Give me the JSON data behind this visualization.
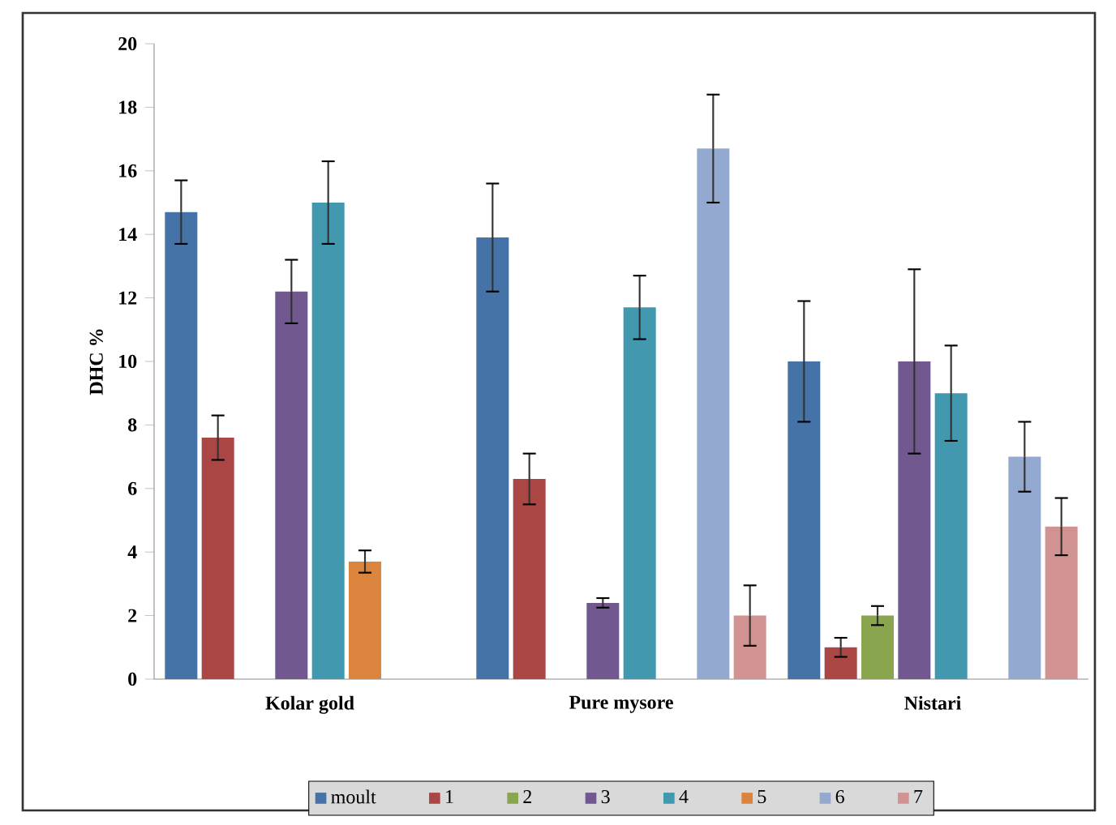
{
  "chart_data": {
    "type": "bar",
    "ylabel": "DHC %",
    "categories": [
      "Kolar gold",
      "Pure mysore",
      "Nistari"
    ],
    "series": [
      {
        "name": "moult",
        "color": "#4572a7",
        "values": [
          14.7,
          13.9,
          10.0
        ],
        "errors": [
          1.0,
          1.7,
          1.9
        ]
      },
      {
        "name": "1",
        "color": "#aa4643",
        "values": [
          7.6,
          6.3,
          1.0
        ],
        "errors": [
          0.7,
          0.8,
          0.3
        ]
      },
      {
        "name": "2",
        "color": "#89a54e",
        "values": [
          null,
          null,
          2.0
        ],
        "errors": [
          null,
          null,
          0.3
        ]
      },
      {
        "name": "3",
        "color": "#71588f",
        "values": [
          12.2,
          2.4,
          10.0
        ],
        "errors": [
          1.0,
          0.15,
          2.9
        ]
      },
      {
        "name": "4",
        "color": "#4198af",
        "values": [
          15.0,
          11.7,
          9.0
        ],
        "errors": [
          1.3,
          1.0,
          1.5
        ]
      },
      {
        "name": "5",
        "color": "#db843d",
        "values": [
          3.7,
          null,
          null
        ],
        "errors": [
          0.35,
          null,
          null
        ]
      },
      {
        "name": "6",
        "color": "#93a9cf",
        "values": [
          null,
          16.7,
          7.0
        ],
        "errors": [
          null,
          1.7,
          1.1
        ]
      },
      {
        "name": "7",
        "color": "#d19392",
        "values": [
          null,
          2.0,
          4.8
        ],
        "errors": [
          null,
          0.95,
          0.9
        ]
      }
    ],
    "ylim": [
      0,
      20
    ],
    "yticks": [
      0,
      2,
      4,
      6,
      8,
      10,
      12,
      14,
      16,
      18,
      20
    ],
    "legend": "bottom"
  }
}
